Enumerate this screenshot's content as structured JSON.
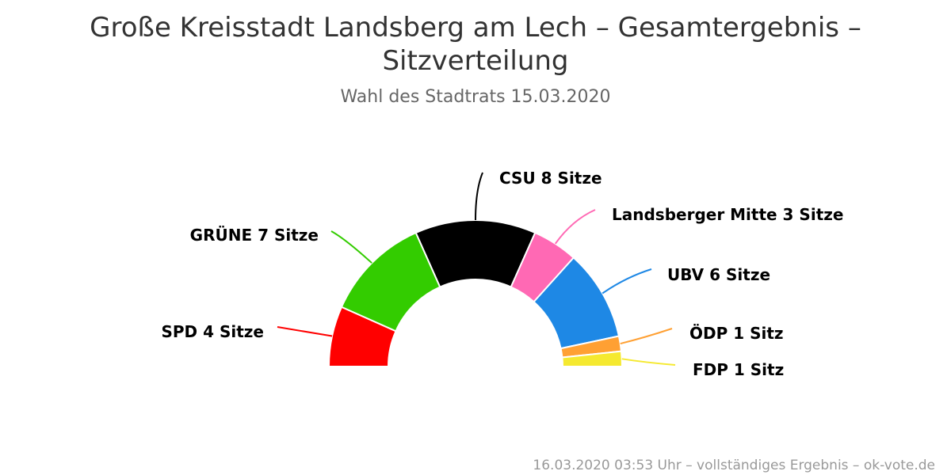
{
  "title": "Große Kreisstadt Landsberg am Lech – Gesamtergebnis – Sitzverteilung",
  "subtitle": "Wahl des Stadtrats 15.03.2020",
  "credits": "16.03.2020 03:53 Uhr – vollständiges Ergebnis – ok-vote.de",
  "chart_data": {
    "type": "pie",
    "variant": "semicircle-parliament",
    "unit": "Sitze",
    "total_seats": 30,
    "series": [
      {
        "name": "SPD",
        "seats": 4,
        "label": "SPD 4 Sitze",
        "color": "#ff0000"
      },
      {
        "name": "GRÜNE",
        "seats": 7,
        "label": "GRÜNE 7 Sitze",
        "color": "#33cc00"
      },
      {
        "name": "CSU",
        "seats": 8,
        "label": "CSU 8 Sitze",
        "color": "#000000"
      },
      {
        "name": "Landsberger Mitte",
        "seats": 3,
        "label": "Landsberger Mitte 3 Sitze",
        "color": "#ff69b4"
      },
      {
        "name": "UBV",
        "seats": 6,
        "label": "UBV 6 Sitze",
        "color": "#1e88e5"
      },
      {
        "name": "ÖDP",
        "seats": 1,
        "label": "ÖDP 1 Sitz",
        "color": "#ffa033"
      },
      {
        "name": "FDP",
        "seats": 1,
        "label": "FDP 1 Sitz",
        "color": "#f5e930"
      }
    ]
  }
}
